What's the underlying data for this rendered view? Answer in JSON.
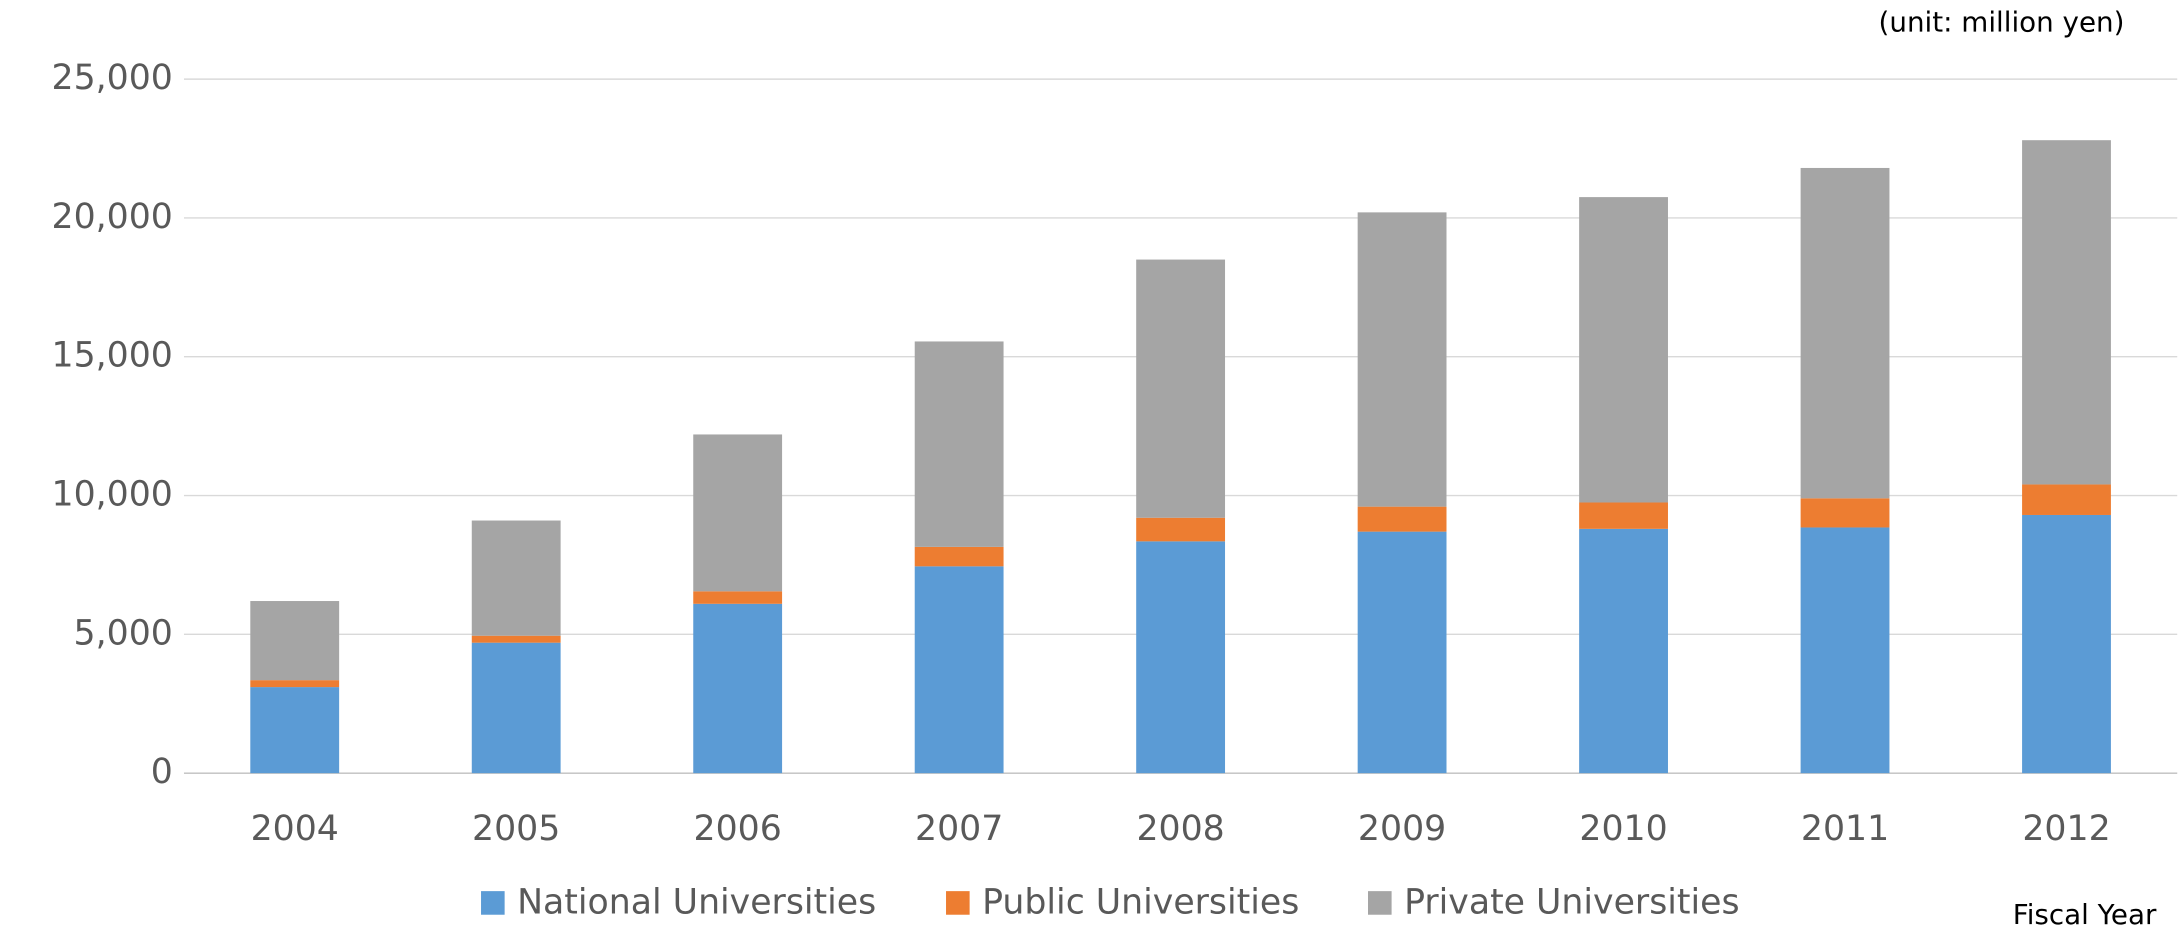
{
  "chart_data": {
    "type": "stacked-bar",
    "subtitle": "(unit: million yen)",
    "x_label": "Fiscal Year",
    "categories": [
      "2004",
      "2005",
      "2006",
      "2007",
      "2008",
      "2009",
      "2010",
      "2011",
      "2012"
    ],
    "series": [
      {
        "name": "National Universities",
        "color": "#5b9bd5",
        "values": [
          3100,
          4700,
          6100,
          7450,
          8350,
          8700,
          8800,
          8850,
          9300
        ]
      },
      {
        "name": "Public Universities",
        "color": "#ed7d31",
        "values": [
          250,
          250,
          450,
          700,
          850,
          900,
          950,
          1050,
          1100
        ]
      },
      {
        "name": "Private Universities",
        "color": "#a5a5a5",
        "values": [
          2850,
          4150,
          5650,
          7400,
          9300,
          10600,
          11000,
          11900,
          12400
        ]
      }
    ],
    "ylim": [
      0,
      25000
    ],
    "yticks": [
      0,
      {
        "value": 5000,
        "label": "5,000"
      },
      {
        "value": 10000,
        "label": "10,000"
      },
      {
        "value": 15000,
        "label": "15,000"
      },
      {
        "value": 20000,
        "label": "20,000"
      },
      {
        "value": 25000,
        "label": "25,000"
      }
    ],
    "grid": true,
    "legend": "bottom"
  }
}
